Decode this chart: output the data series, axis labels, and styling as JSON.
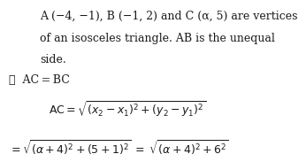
{
  "bg_color": "#ffffff",
  "text_color": "#1a1a1a",
  "figsize": [
    3.46,
    1.74
  ],
  "dpi": 100,
  "line1": "A (−4, −1), B (−1, 2) and C (α, 5) are vertices",
  "line2": "of an isosceles triangle. AB is the unequal",
  "line3": "side.",
  "line4": "∴  AC = BC",
  "math1": "$\\mathrm{AC} = \\sqrt{(x_2 - x_1)^2 + (y_2 - y_1)^2}$",
  "math2": "$= \\sqrt{(\\alpha + 4)^2 + (5+1)^2}\\; = \\; \\sqrt{(\\alpha + 4)^2 + 6^2}$",
  "fs_text": 9.0,
  "fs_math": 9.0,
  "indent_text": 0.13,
  "indent_sym": 0.03,
  "indent_math": 0.16,
  "indent_math2": 0.03
}
